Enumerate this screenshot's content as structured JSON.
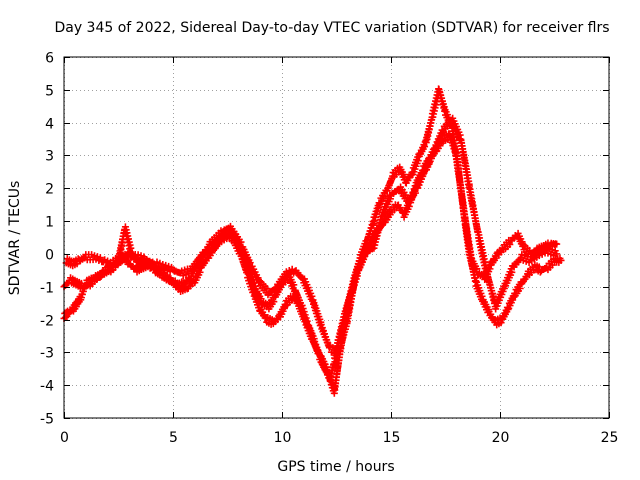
{
  "chart_data": {
    "type": "scatter",
    "title": "Day 345 of 2022, Sidereal Day-to-day VTEC variation (SDTVAR) for receiver flrs",
    "xlabel": "GPS time / hours",
    "ylabel": "SDTVAR / TECUs",
    "xlim": [
      0,
      25
    ],
    "ylim": [
      -5,
      6
    ],
    "xticks": [
      0,
      5,
      10,
      15,
      20,
      25
    ],
    "yticks": [
      -5,
      -4,
      -3,
      -2,
      -1,
      0,
      1,
      2,
      3,
      4,
      5,
      6
    ],
    "grid": true,
    "marker": "plus",
    "series_color": "#ff0000",
    "series": [
      {
        "x": [
          0.0,
          0.3,
          0.6,
          0.9,
          1.2,
          1.5,
          1.8,
          2.1,
          2.4,
          2.6,
          2.8,
          3.0,
          3.3,
          3.6,
          3.9,
          4.2,
          4.5,
          4.8,
          5.1,
          5.4,
          5.7,
          6.0,
          6.3,
          6.6,
          6.9,
          7.2,
          7.5,
          7.8,
          8.1,
          8.4,
          8.7,
          9.0,
          9.3,
          9.6,
          9.9,
          10.2,
          10.5,
          10.8,
          11.1,
          11.4,
          11.7,
          12.0,
          12.2,
          12.4,
          12.6,
          12.9,
          13.2,
          13.5,
          13.8,
          14.1,
          14.4,
          14.7,
          15.0,
          15.3,
          15.6,
          15.9,
          16.2,
          16.5,
          16.8,
          17.1,
          17.4,
          17.7,
          18.0,
          18.3,
          18.6,
          18.9,
          19.2,
          19.5,
          19.8,
          20.1,
          20.4,
          20.7,
          21.0,
          21.3,
          21.6,
          21.9,
          22.2,
          22.5,
          22.8
        ],
        "y": [
          -1.0,
          -0.8,
          -0.9,
          -1.0,
          -0.9,
          -0.7,
          -0.6,
          -0.5,
          -0.3,
          -0.2,
          -0.1,
          -0.3,
          -0.5,
          -0.4,
          -0.3,
          -0.5,
          -0.6,
          -0.8,
          -0.9,
          -1.1,
          -1.0,
          -0.8,
          -0.4,
          -0.1,
          0.2,
          0.5,
          0.6,
          0.4,
          0.0,
          -0.6,
          -1.2,
          -1.7,
          -2.0,
          -2.1,
          -1.9,
          -1.5,
          -1.3,
          -1.6,
          -2.1,
          -2.6,
          -3.1,
          -3.5,
          -3.8,
          -3.3,
          -2.6,
          -1.8,
          -1.1,
          -0.5,
          0.0,
          0.4,
          0.7,
          1.0,
          1.3,
          1.5,
          1.2,
          1.6,
          2.2,
          2.6,
          2.9,
          3.2,
          3.5,
          3.6,
          3.0,
          1.5,
          0.0,
          -0.9,
          -1.4,
          -1.8,
          -2.1,
          -2.0,
          -1.6,
          -1.2,
          -0.9,
          -0.6,
          -0.4,
          -0.5,
          -0.4,
          -0.2,
          -0.2
        ]
      },
      {
        "x": [
          0.0,
          0.2,
          0.4,
          0.6,
          0.8,
          1.0,
          1.3,
          1.6,
          1.9,
          2.2,
          2.5,
          2.8,
          3.1,
          3.4,
          3.7,
          4.0,
          4.3,
          4.6,
          4.9,
          5.2,
          5.5,
          5.8,
          6.1,
          6.4,
          6.7,
          7.0,
          7.3,
          7.6,
          7.9,
          8.2,
          8.5,
          8.8,
          9.1,
          9.4,
          9.7,
          10.0,
          10.3,
          10.6,
          10.9,
          11.2,
          11.5,
          11.8,
          12.1,
          12.4,
          12.7,
          13.0,
          13.3,
          13.6,
          13.9,
          14.2,
          14.5,
          14.8,
          15.1,
          15.4,
          15.7,
          16.0,
          16.3,
          16.6,
          16.9,
          17.2,
          17.5,
          17.8,
          18.1,
          18.4,
          18.7,
          19.0,
          19.3,
          19.6,
          19.9,
          20.2,
          20.5,
          20.8,
          21.1,
          21.4,
          21.7,
          22.0,
          22.3,
          22.6
        ],
        "y": [
          -1.9,
          -1.8,
          -1.7,
          -1.5,
          -1.3,
          -0.9,
          -0.8,
          -0.7,
          -0.5,
          -0.4,
          -0.2,
          0.8,
          0.0,
          -0.3,
          -0.2,
          -0.4,
          -0.5,
          -0.7,
          -0.8,
          -1.0,
          -0.9,
          -0.7,
          -0.3,
          0.0,
          0.3,
          0.5,
          0.7,
          0.8,
          0.5,
          0.0,
          -0.5,
          -1.1,
          -1.5,
          -1.6,
          -1.3,
          -0.9,
          -0.7,
          -1.1,
          -1.6,
          -2.2,
          -2.7,
          -3.2,
          -3.6,
          -4.2,
          -2.8,
          -1.6,
          -0.8,
          -0.1,
          0.4,
          1.0,
          1.6,
          1.9,
          2.4,
          2.6,
          2.2,
          2.5,
          3.0,
          3.4,
          4.2,
          5.0,
          4.3,
          3.9,
          2.5,
          1.0,
          -0.2,
          -0.6,
          -0.7,
          -0.3,
          0.0,
          0.2,
          0.4,
          0.6,
          0.2,
          0.0,
          0.1,
          0.2,
          0.3,
          0.3
        ]
      },
      {
        "x": [
          0.1,
          0.4,
          0.7,
          1.0,
          1.4,
          1.8,
          2.2,
          2.6,
          3.0,
          3.4,
          3.8,
          4.2,
          4.6,
          5.0,
          5.4,
          5.8,
          6.2,
          6.6,
          7.0,
          7.4,
          7.8,
          8.2,
          8.6,
          9.0,
          9.4,
          9.8,
          10.2,
          10.6,
          11.0,
          11.4,
          11.8,
          12.2,
          12.6,
          13.0,
          13.4,
          13.8,
          14.2,
          14.6,
          15.0,
          15.4,
          15.8,
          16.2,
          16.6,
          17.0,
          17.4,
          17.8,
          18.2,
          18.6,
          19.0,
          19.4,
          19.8,
          20.2,
          20.6,
          21.0,
          21.4,
          21.8,
          22.2,
          22.6
        ],
        "y": [
          -0.2,
          -0.3,
          -0.2,
          -0.1,
          -0.1,
          -0.2,
          -0.3,
          -0.1,
          0.0,
          -0.1,
          -0.2,
          -0.3,
          -0.4,
          -0.5,
          -0.6,
          -0.5,
          -0.2,
          0.1,
          0.3,
          0.5,
          0.6,
          0.2,
          -0.4,
          -0.9,
          -1.2,
          -1.0,
          -0.6,
          -0.5,
          -0.8,
          -1.4,
          -2.2,
          -2.9,
          -3.0,
          -2.0,
          -0.6,
          0.0,
          0.2,
          1.2,
          1.8,
          2.0,
          1.6,
          2.0,
          2.6,
          3.2,
          3.8,
          4.1,
          3.5,
          2.0,
          0.6,
          -0.6,
          -1.6,
          -1.0,
          -0.4,
          -0.1,
          -0.2,
          0.0,
          0.1,
          0.0
        ]
      }
    ]
  }
}
